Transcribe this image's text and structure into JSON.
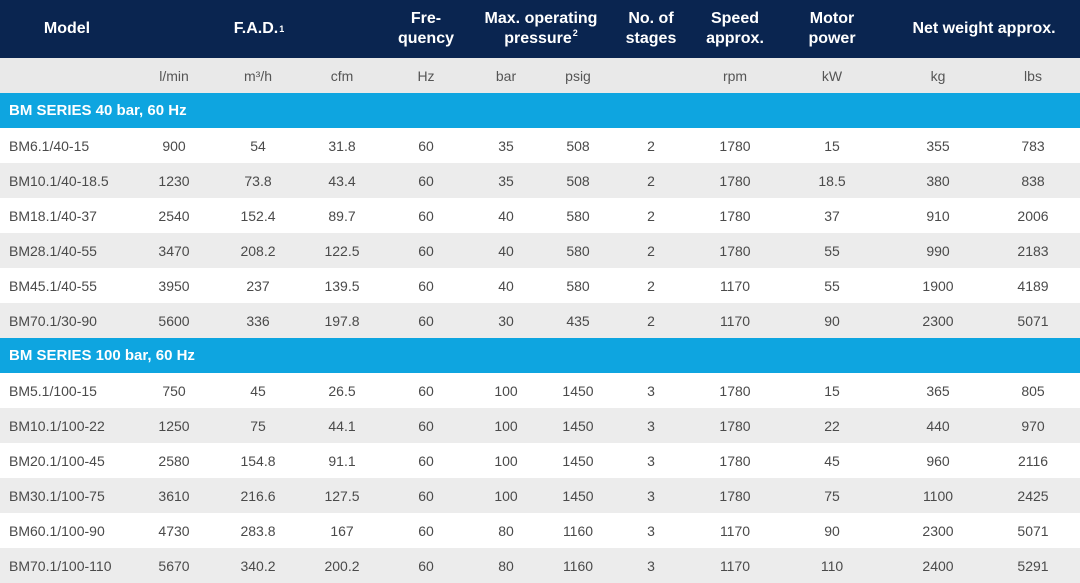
{
  "header": {
    "model": "Model",
    "fad": "F.A.D.",
    "fad_sup": "1",
    "frequency_line1": "Fre-",
    "frequency_line2": "quency",
    "pressure_line1": "Max. operating",
    "pressure_line2": "pressure",
    "pressure_sup": "2",
    "stages_line1": "No. of",
    "stages_line2": "stages",
    "speed_line1": "Speed",
    "speed_line2": "approx.",
    "motor_line1": "Motor",
    "motor_line2": "power",
    "weight": "Net weight approx."
  },
  "units": [
    "l/min",
    "m³/h",
    "cfm",
    "Hz",
    "bar",
    "psig",
    "rpm",
    "kW",
    "kg",
    "lbs"
  ],
  "sections": [
    {
      "title": "BM SERIES 40 bar, 60 Hz",
      "rows": [
        {
          "model": "BM6.1/40-15",
          "lmin": "900",
          "m3h": "54",
          "cfm": "31.8",
          "hz": "60",
          "bar": "35",
          "psig": "508",
          "stages": "2",
          "rpm": "1780",
          "kw": "15",
          "kg": "355",
          "lbs": "783"
        },
        {
          "model": "BM10.1/40-18.5",
          "lmin": "1230",
          "m3h": "73.8",
          "cfm": "43.4",
          "hz": "60",
          "bar": "35",
          "psig": "508",
          "stages": "2",
          "rpm": "1780",
          "kw": "18.5",
          "kg": "380",
          "lbs": "838"
        },
        {
          "model": "BM18.1/40-37",
          "lmin": "2540",
          "m3h": "152.4",
          "cfm": "89.7",
          "hz": "60",
          "bar": "40",
          "psig": "580",
          "stages": "2",
          "rpm": "1780",
          "kw": "37",
          "kg": "910",
          "lbs": "2006"
        },
        {
          "model": "BM28.1/40-55",
          "lmin": "3470",
          "m3h": "208.2",
          "cfm": "122.5",
          "hz": "60",
          "bar": "40",
          "psig": "580",
          "stages": "2",
          "rpm": "1780",
          "kw": "55",
          "kg": "990",
          "lbs": "2183"
        },
        {
          "model": "BM45.1/40-55",
          "lmin": "3950",
          "m3h": "237",
          "cfm": "139.5",
          "hz": "60",
          "bar": "40",
          "psig": "580",
          "stages": "2",
          "rpm": "1170",
          "kw": "55",
          "kg": "1900",
          "lbs": "4189"
        },
        {
          "model": "BM70.1/30-90",
          "lmin": "5600",
          "m3h": "336",
          "cfm": "197.8",
          "hz": "60",
          "bar": "30",
          "psig": "435",
          "stages": "2",
          "rpm": "1170",
          "kw": "90",
          "kg": "2300",
          "lbs": "5071"
        }
      ]
    },
    {
      "title": "BM SERIES 100 bar, 60 Hz",
      "rows": [
        {
          "model": "BM5.1/100-15",
          "lmin": "750",
          "m3h": "45",
          "cfm": "26.5",
          "hz": "60",
          "bar": "100",
          "psig": "1450",
          "stages": "3",
          "rpm": "1780",
          "kw": "15",
          "kg": "365",
          "lbs": "805"
        },
        {
          "model": "BM10.1/100-22",
          "lmin": "1250",
          "m3h": "75",
          "cfm": "44.1",
          "hz": "60",
          "bar": "100",
          "psig": "1450",
          "stages": "3",
          "rpm": "1780",
          "kw": "22",
          "kg": "440",
          "lbs": "970"
        },
        {
          "model": "BM20.1/100-45",
          "lmin": "2580",
          "m3h": "154.8",
          "cfm": "91.1",
          "hz": "60",
          "bar": "100",
          "psig": "1450",
          "stages": "3",
          "rpm": "1780",
          "kw": "45",
          "kg": "960",
          "lbs": "2116"
        },
        {
          "model": "BM30.1/100-75",
          "lmin": "3610",
          "m3h": "216.6",
          "cfm": "127.5",
          "hz": "60",
          "bar": "100",
          "psig": "1450",
          "stages": "3",
          "rpm": "1780",
          "kw": "75",
          "kg": "1100",
          "lbs": "2425"
        },
        {
          "model": "BM60.1/100-90",
          "lmin": "4730",
          "m3h": "283.8",
          "cfm": "167",
          "hz": "60",
          "bar": "80",
          "psig": "1160",
          "stages": "3",
          "rpm": "1170",
          "kw": "90",
          "kg": "2300",
          "lbs": "5071"
        },
        {
          "model": "BM70.1/100-110",
          "lmin": "5670",
          "m3h": "340.2",
          "cfm": "200.2",
          "hz": "60",
          "bar": "80",
          "psig": "1160",
          "stages": "3",
          "rpm": "1170",
          "kw": "110",
          "kg": "2400",
          "lbs": "5291"
        }
      ]
    }
  ],
  "colors": {
    "header_bg": "#0a2550",
    "section_bg": "#0ea5e0",
    "units_bg": "#e9e9e9",
    "row_alt_bg": "#ececec",
    "text": "#4a4a4a"
  }
}
